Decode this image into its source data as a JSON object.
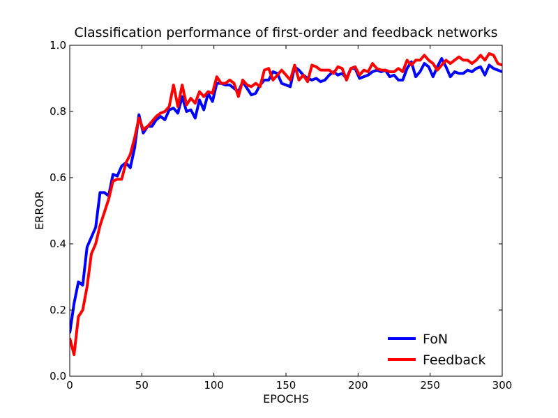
{
  "chart_data": {
    "type": "line",
    "title": "Classification performance of first-order and feedback networks",
    "xlabel": "EPOCHS",
    "ylabel": "ERROR",
    "xlim": [
      0,
      300
    ],
    "ylim": [
      0.0,
      1.0
    ],
    "xticks": [
      0,
      50,
      100,
      150,
      200,
      250,
      300
    ],
    "xtick_labels": [
      "0",
      "50",
      "100",
      "150",
      "200",
      "250",
      "300"
    ],
    "yticks": [
      0.0,
      0.2,
      0.4,
      0.6,
      0.8,
      1.0
    ],
    "ytick_labels": [
      "0.0",
      "0.2",
      "0.4",
      "0.6",
      "0.8",
      "1.0"
    ],
    "grid": false,
    "legend_position": "bottom-right",
    "series": [
      {
        "name": "FoN",
        "color": "#0000ff",
        "x": [
          0,
          3,
          6,
          9,
          12,
          15,
          18,
          21,
          24,
          27,
          30,
          33,
          36,
          39,
          42,
          45,
          48,
          51,
          54,
          57,
          60,
          63,
          66,
          69,
          72,
          75,
          78,
          81,
          84,
          87,
          90,
          93,
          96,
          99,
          102,
          105,
          108,
          111,
          114,
          117,
          120,
          123,
          126,
          129,
          132,
          135,
          138,
          141,
          144,
          147,
          150,
          153,
          156,
          159,
          162,
          165,
          168,
          171,
          174,
          177,
          180,
          183,
          186,
          189,
          192,
          195,
          198,
          201,
          204,
          207,
          210,
          213,
          216,
          219,
          222,
          225,
          228,
          231,
          234,
          237,
          240,
          243,
          246,
          249,
          252,
          255,
          258,
          261,
          264,
          267,
          270,
          273,
          276,
          279,
          282,
          285,
          288,
          291,
          294,
          297,
          300
        ],
        "y": [
          0.13,
          0.22,
          0.285,
          0.275,
          0.39,
          0.42,
          0.45,
          0.555,
          0.555,
          0.545,
          0.61,
          0.605,
          0.635,
          0.645,
          0.63,
          0.69,
          0.79,
          0.735,
          0.755,
          0.755,
          0.775,
          0.785,
          0.775,
          0.805,
          0.81,
          0.795,
          0.845,
          0.8,
          0.805,
          0.78,
          0.835,
          0.805,
          0.855,
          0.83,
          0.885,
          0.885,
          0.88,
          0.88,
          0.87,
          0.86,
          0.89,
          0.87,
          0.85,
          0.855,
          0.88,
          0.895,
          0.895,
          0.92,
          0.915,
          0.885,
          0.88,
          0.875,
          0.935,
          0.925,
          0.91,
          0.9,
          0.895,
          0.9,
          0.89,
          0.895,
          0.91,
          0.92,
          0.91,
          0.915,
          0.9,
          0.93,
          0.93,
          0.9,
          0.905,
          0.91,
          0.92,
          0.925,
          0.92,
          0.925,
          0.905,
          0.91,
          0.895,
          0.895,
          0.93,
          0.95,
          0.905,
          0.92,
          0.945,
          0.935,
          0.905,
          0.935,
          0.96,
          0.935,
          0.905,
          0.92,
          0.915,
          0.915,
          0.925,
          0.92,
          0.93,
          0.935,
          0.91,
          0.94,
          0.93,
          0.925,
          0.92
        ]
      },
      {
        "name": "Feedback",
        "color": "#ff0000",
        "x": [
          0,
          3,
          6,
          9,
          12,
          15,
          18,
          21,
          24,
          27,
          30,
          33,
          36,
          39,
          42,
          45,
          48,
          51,
          54,
          57,
          60,
          63,
          66,
          69,
          72,
          75,
          78,
          81,
          84,
          87,
          90,
          93,
          96,
          99,
          102,
          105,
          108,
          111,
          114,
          117,
          120,
          123,
          126,
          129,
          132,
          135,
          138,
          141,
          144,
          147,
          150,
          153,
          156,
          159,
          162,
          165,
          168,
          171,
          174,
          177,
          180,
          183,
          186,
          189,
          192,
          195,
          198,
          201,
          204,
          207,
          210,
          213,
          216,
          219,
          222,
          225,
          228,
          231,
          234,
          237,
          240,
          243,
          246,
          249,
          252,
          255,
          258,
          261,
          264,
          267,
          270,
          273,
          276,
          279,
          282,
          285,
          288,
          291,
          294,
          297,
          300
        ],
        "y": [
          0.115,
          0.065,
          0.18,
          0.2,
          0.27,
          0.37,
          0.4,
          0.455,
          0.495,
          0.535,
          0.59,
          0.595,
          0.595,
          0.645,
          0.67,
          0.72,
          0.78,
          0.745,
          0.755,
          0.77,
          0.785,
          0.795,
          0.8,
          0.815,
          0.88,
          0.815,
          0.88,
          0.82,
          0.84,
          0.825,
          0.86,
          0.845,
          0.86,
          0.855,
          0.905,
          0.885,
          0.885,
          0.895,
          0.885,
          0.845,
          0.895,
          0.88,
          0.875,
          0.885,
          0.875,
          0.925,
          0.93,
          0.895,
          0.91,
          0.925,
          0.91,
          0.895,
          0.94,
          0.895,
          0.91,
          0.89,
          0.94,
          0.935,
          0.925,
          0.925,
          0.925,
          0.915,
          0.935,
          0.93,
          0.895,
          0.93,
          0.935,
          0.91,
          0.925,
          0.92,
          0.945,
          0.93,
          0.925,
          0.925,
          0.92,
          0.92,
          0.93,
          0.92,
          0.955,
          0.94,
          0.955,
          0.955,
          0.97,
          0.955,
          0.945,
          0.925,
          0.94,
          0.955,
          0.945,
          0.955,
          0.965,
          0.955,
          0.955,
          0.945,
          0.955,
          0.97,
          0.955,
          0.975,
          0.97,
          0.945,
          0.94
        ]
      }
    ]
  }
}
